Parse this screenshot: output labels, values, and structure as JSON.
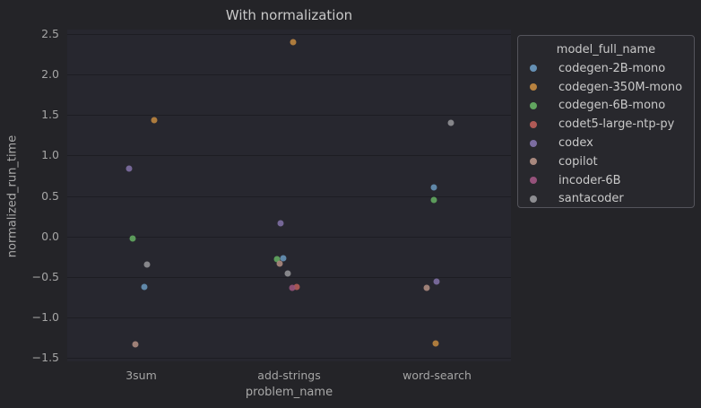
{
  "theme": {
    "figure_bg": "#242428",
    "axes_bg": "#27272f",
    "grid_color": "#1d1d23",
    "title_color": "#c9c9c9",
    "tick_color": "#a5a5a5",
    "axis_label_color": "#a9a9a9",
    "legend_bg": "#28282d",
    "legend_border": "#54545b",
    "legend_text": "#c9c9c9"
  },
  "chart_data": {
    "type": "scatter",
    "title": "With normalization",
    "xlabel": "problem_name",
    "ylabel": "normalized_run_time",
    "legend_title": "model_full_name",
    "legend_position": "upper right, outside axes",
    "grid": true,
    "categories": [
      "3sum",
      "add-strings",
      "word-search"
    ],
    "ylim": [
      -1.54,
      2.55
    ],
    "yticks": [
      2.5,
      2.0,
      1.5,
      1.0,
      0.5,
      0.0,
      -0.5,
      -1.0,
      -1.5
    ],
    "ytick_labels": [
      "2.5",
      "2.0",
      "1.5",
      "1.0",
      "0.5",
      "0.0",
      "−0.5",
      "−1.0",
      "−1.5"
    ],
    "series": [
      {
        "name": "codegen-2B-mono",
        "color": "#6590b4",
        "points": [
          {
            "category": "3sum",
            "y": -0.62,
            "dx": 3
          },
          {
            "category": "add-strings",
            "y": -0.27,
            "dx": -6.5
          },
          {
            "category": "word-search",
            "y": 0.6,
            "dx": -4
          }
        ]
      },
      {
        "name": "codegen-350M-mono",
        "color": "#b8823f",
        "points": [
          {
            "category": "3sum",
            "y": 1.43,
            "dx": 14
          },
          {
            "category": "add-strings",
            "y": 2.4,
            "dx": 4.5
          },
          {
            "category": "word-search",
            "y": -1.32,
            "dx": -1.5
          }
        ]
      },
      {
        "name": "codegen-6B-mono",
        "color": "#61a55f",
        "points": [
          {
            "category": "3sum",
            "y": -0.03,
            "dx": -10
          },
          {
            "category": "add-strings",
            "y": -0.28,
            "dx": -13.5
          },
          {
            "category": "word-search",
            "y": 0.45,
            "dx": -3.5
          }
        ]
      },
      {
        "name": "codet5-large-ntp-py",
        "color": "#b05a56",
        "points": [
          {
            "category": "add-strings",
            "y": -0.62,
            "dx": 8
          }
        ]
      },
      {
        "name": "codex",
        "color": "#7c6da1",
        "points": [
          {
            "category": "3sum",
            "y": 0.84,
            "dx": -14
          },
          {
            "category": "add-strings",
            "y": 0.16,
            "dx": -10
          },
          {
            "category": "word-search",
            "y": -0.56,
            "dx": -1
          }
        ]
      },
      {
        "name": "copilot",
        "color": "#a8887e",
        "points": [
          {
            "category": "3sum",
            "y": -1.33,
            "dx": -7
          },
          {
            "category": "add-strings",
            "y": -0.33,
            "dx": -11
          },
          {
            "category": "word-search",
            "y": -0.63,
            "dx": -12
          }
        ]
      },
      {
        "name": "incoder-6B",
        "color": "#96527b",
        "points": [
          {
            "category": "add-strings",
            "y": -0.63,
            "dx": 3
          }
        ]
      },
      {
        "name": "santacoder",
        "color": "#8e8e92",
        "points": [
          {
            "category": "3sum",
            "y": -0.35,
            "dx": 6.5
          },
          {
            "category": "add-strings",
            "y": -0.46,
            "dx": -2
          },
          {
            "category": "word-search",
            "y": 1.4,
            "dx": 15
          }
        ]
      }
    ]
  }
}
